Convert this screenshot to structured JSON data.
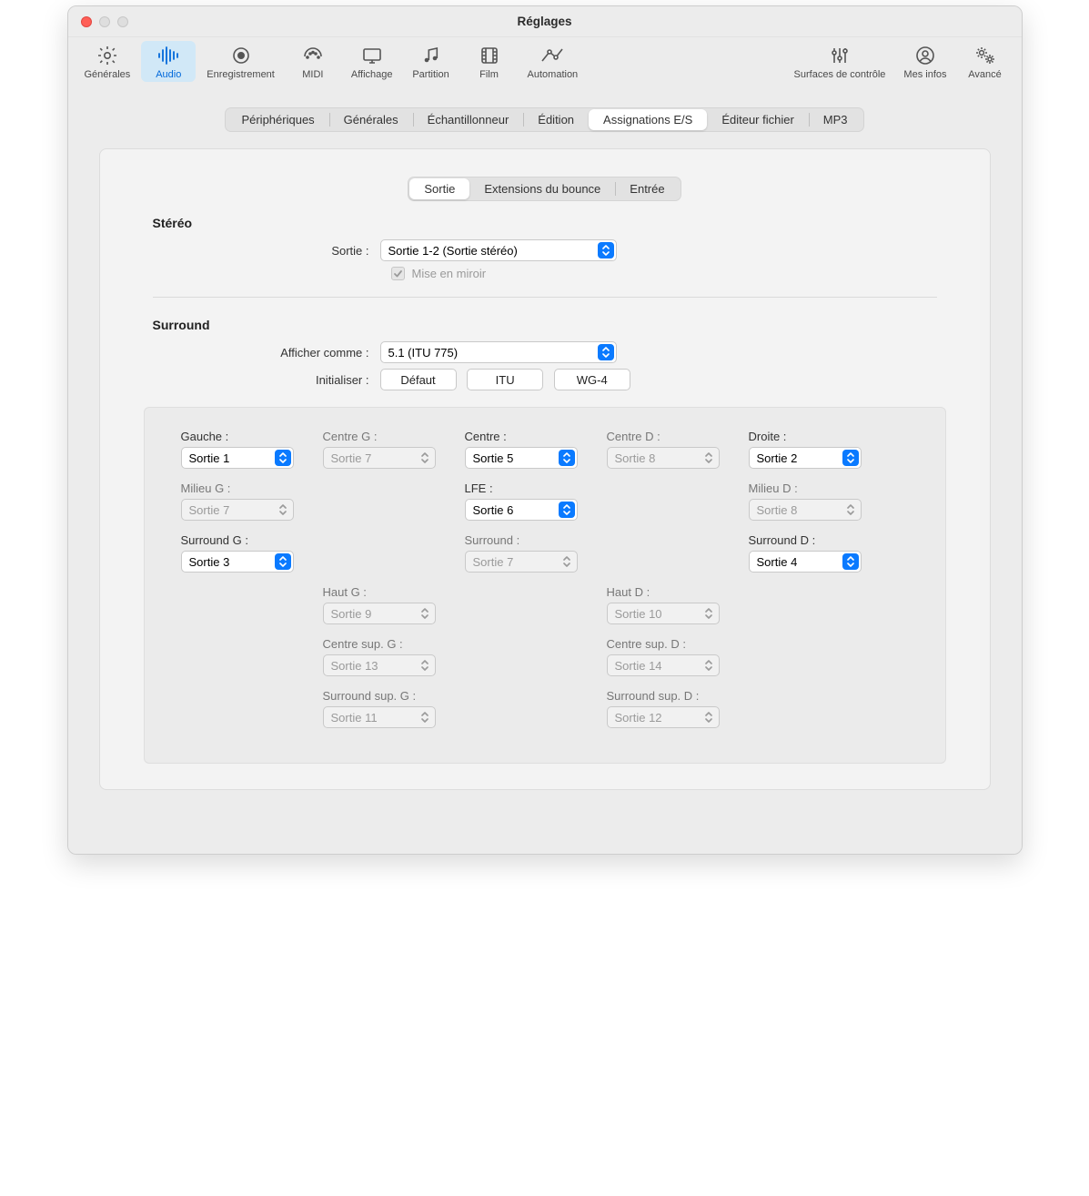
{
  "window": {
    "title": "Réglages"
  },
  "toolbar": {
    "left": [
      {
        "id": "general",
        "label": "Générales",
        "icon": "gear"
      },
      {
        "id": "audio",
        "label": "Audio",
        "icon": "wave",
        "selected": true
      },
      {
        "id": "recording",
        "label": "Enregistrement",
        "icon": "record"
      },
      {
        "id": "midi",
        "label": "MIDI",
        "icon": "midi"
      },
      {
        "id": "display",
        "label": "Affichage",
        "icon": "display"
      },
      {
        "id": "score",
        "label": "Partition",
        "icon": "score"
      },
      {
        "id": "movie",
        "label": "Film",
        "icon": "film"
      },
      {
        "id": "automation",
        "label": "Automation",
        "icon": "automation"
      }
    ],
    "right": [
      {
        "id": "surfaces",
        "label": "Surfaces de contrôle",
        "icon": "sliders"
      },
      {
        "id": "myinfo",
        "label": "Mes infos",
        "icon": "person"
      },
      {
        "id": "advanced",
        "label": "Avancé",
        "icon": "gears"
      }
    ]
  },
  "tabs": {
    "main": [
      {
        "id": "devices",
        "label": "Périphériques"
      },
      {
        "id": "generales",
        "label": "Générales"
      },
      {
        "id": "sampler",
        "label": "Échantillonneur"
      },
      {
        "id": "editing",
        "label": "Édition"
      },
      {
        "id": "io",
        "label": "Assignations E/S",
        "active": true
      },
      {
        "id": "fileedit",
        "label": "Éditeur fichier"
      },
      {
        "id": "mp3",
        "label": "MP3"
      }
    ],
    "sub": [
      {
        "id": "output",
        "label": "Sortie",
        "active": true
      },
      {
        "id": "bounce",
        "label": "Extensions du bounce"
      },
      {
        "id": "input",
        "label": "Entrée"
      }
    ]
  },
  "stereo": {
    "title": "Stéréo",
    "output_label": "Sortie :",
    "output_value": "Sortie 1-2 (Sortie stéréo)",
    "mirror_label": "Mise en miroir",
    "mirror_checked": true
  },
  "surround": {
    "title": "Surround",
    "show_as_label": "Afficher comme :",
    "show_as_value": "5.1 (ITU 775)",
    "init_label": "Initialiser :",
    "buttons": {
      "default": "Défaut",
      "itu": "ITU",
      "wg4": "WG-4"
    }
  },
  "channels": {
    "rows": [
      [
        {
          "label": "Gauche :",
          "value": "Sortie 1",
          "enabled": true
        },
        {
          "label": "Centre G :",
          "value": "Sortie 7",
          "enabled": false
        },
        {
          "label": "Centre :",
          "value": "Sortie 5",
          "enabled": true
        },
        {
          "label": "Centre D :",
          "value": "Sortie 8",
          "enabled": false
        },
        {
          "label": "Droite :",
          "value": "Sortie 2",
          "enabled": true
        }
      ],
      [
        {
          "label": "Milieu G :",
          "value": "Sortie 7",
          "enabled": false
        },
        null,
        {
          "label": "LFE :",
          "value": "Sortie 6",
          "enabled": true
        },
        null,
        {
          "label": "Milieu D :",
          "value": "Sortie 8",
          "enabled": false
        }
      ],
      [
        {
          "label": "Surround G :",
          "value": "Sortie 3",
          "enabled": true
        },
        null,
        {
          "label": "Surround :",
          "value": "Sortie 7",
          "enabled": false
        },
        null,
        {
          "label": "Surround D :",
          "value": "Sortie 4",
          "enabled": true
        }
      ],
      [
        null,
        {
          "label": "Haut G :",
          "value": "Sortie 9",
          "enabled": false
        },
        null,
        {
          "label": "Haut D :",
          "value": "Sortie 10",
          "enabled": false
        },
        null
      ],
      [
        null,
        {
          "label": "Centre sup. G :",
          "value": "Sortie 13",
          "enabled": false
        },
        null,
        {
          "label": "Centre sup. D :",
          "value": "Sortie 14",
          "enabled": false
        },
        null
      ],
      [
        null,
        {
          "label": "Surround sup. G :",
          "value": "Sortie 11",
          "enabled": false
        },
        null,
        {
          "label": "Surround sup. D :",
          "value": "Sortie 12",
          "enabled": false
        },
        null
      ]
    ]
  },
  "colors": {
    "accent": "#0a7aff",
    "selected_bg": "#d1e8f7",
    "selected_fg": "#0068da"
  }
}
